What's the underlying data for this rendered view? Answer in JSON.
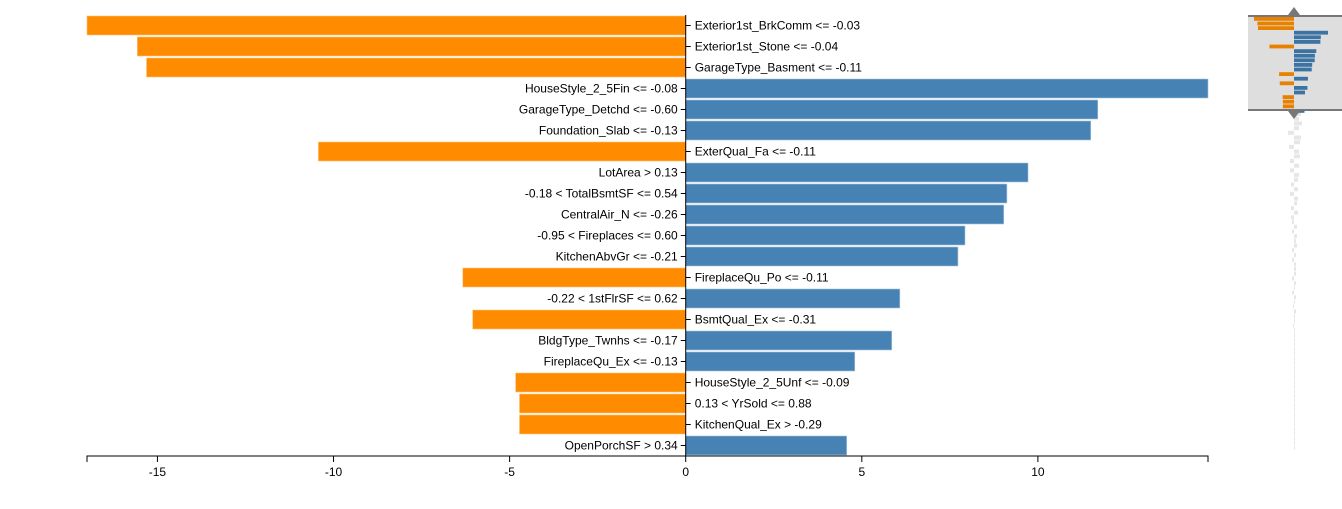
{
  "chart_data": {
    "type": "bar",
    "orientation": "horizontal",
    "title": "",
    "xlabel": "",
    "ylabel": "",
    "xlim": [
      -17.0,
      14.83
    ],
    "xticks": [
      -15,
      -10,
      -5,
      0,
      5,
      10
    ],
    "grid": false,
    "colors": {
      "positive": "#4682b4",
      "negative": "#ff8c00"
    },
    "categories": [
      "Exterior1st_BrkComm <= -0.03",
      "Exterior1st_Stone <= -0.04",
      "GarageType_Basment <= -0.11",
      "HouseStyle_2_5Fin <= -0.08",
      "GarageType_Detchd <= -0.60",
      "Foundation_Slab <= -0.13",
      "ExterQual_Fa <= -0.11",
      "LotArea > 0.13",
      "-0.18 < TotalBsmtSF <= 0.54",
      "CentralAir_N <= -0.26",
      "-0.95 < Fireplaces <= 0.60",
      "KitchenAbvGr <= -0.21",
      "FireplaceQu_Po <= -0.11",
      "-0.22 < 1stFlrSF <= 0.62",
      "BsmtQual_Ex <= -0.31",
      "BldgType_Twnhs <= -0.17",
      "FireplaceQu_Ex <= -0.13",
      "HouseStyle_2_5Unf <= -0.09",
      "0.13 < YrSold <= 0.88",
      "KitchenQual_Ex > -0.29",
      "OpenPorchSF > 0.34"
    ],
    "values": [
      -17.0,
      -15.57,
      -15.31,
      14.83,
      11.7,
      11.5,
      -10.43,
      9.72,
      9.12,
      9.03,
      7.93,
      7.73,
      -6.33,
      6.08,
      -6.05,
      5.85,
      4.8,
      -4.83,
      -4.72,
      -4.72,
      4.57
    ]
  },
  "minimap": {
    "visible_rows": 21,
    "extra_rows_faded": true
  }
}
